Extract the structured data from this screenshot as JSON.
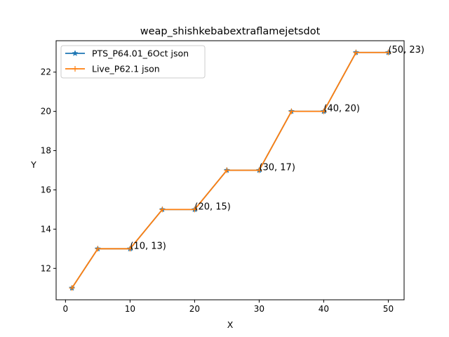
{
  "chart_data": {
    "type": "line",
    "title": "weap_shishkebabextraflamejetsdot",
    "xlabel": "X",
    "ylabel": "Y",
    "xlim": [
      -1.45,
      52.45
    ],
    "ylim": [
      10.4,
      23.6
    ],
    "xticks": [
      0,
      10,
      20,
      30,
      40,
      50
    ],
    "yticks": [
      12,
      14,
      16,
      18,
      20,
      22
    ],
    "grid": false,
    "legend_position": "top-left",
    "x": [
      1,
      5,
      10,
      15,
      20,
      25,
      30,
      35,
      40,
      45,
      50
    ],
    "series": [
      {
        "name": "PTS_P64.01_6Oct json",
        "color": "#1f77b4",
        "marker": "star",
        "values": [
          11,
          13,
          13,
          15,
          15,
          17,
          17,
          20,
          20,
          23,
          23
        ]
      },
      {
        "name": "Live_P62.1 json",
        "color": "#ff7f0e",
        "marker": "plus",
        "values": [
          11,
          13,
          13,
          15,
          15,
          17,
          17,
          20,
          20,
          23,
          23
        ]
      }
    ],
    "annotations": [
      {
        "x": 10,
        "y": 13,
        "text": "(10, 13)"
      },
      {
        "x": 20,
        "y": 15,
        "text": "(20, 15)"
      },
      {
        "x": 30,
        "y": 17,
        "text": "(30, 17)"
      },
      {
        "x": 40,
        "y": 20,
        "text": "(40, 20)"
      },
      {
        "x": 50,
        "y": 23,
        "text": "(50, 23)"
      }
    ]
  }
}
